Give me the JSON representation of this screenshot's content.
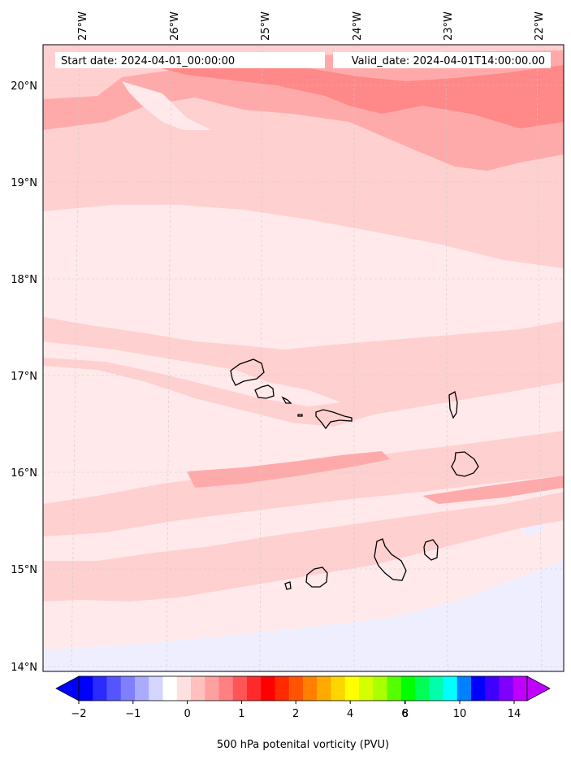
{
  "header": {
    "start_label": "Start date: 2024-04-01_00:00:00",
    "valid_label": "Valid_date: 2024-04-01T14:00:00.00"
  },
  "map": {
    "lon_labels": [
      "27°W",
      "26°W",
      "25°W",
      "24°W",
      "23°W",
      "22°W"
    ],
    "lat_labels": [
      "20°N",
      "19°N",
      "18°N",
      "17°N",
      "16°N",
      "15°N",
      "14°N"
    ],
    "fill_colors": {
      "very_light_pink": "#ffe9ea",
      "light_pink": "#ffd0d0",
      "pink": "#ffaaaa",
      "salmon": "#ff8888",
      "lavender": "#eeeeff",
      "coastline": "#000000",
      "grid": "#cccccc"
    }
  },
  "colorbar": {
    "label": "500 hPa potenital vorticity (PVU)",
    "ticks": [
      "−2",
      "−1",
      "0",
      "1",
      "2",
      "4",
      "6",
      "8",
      "10",
      "14"
    ],
    "colors": [
      "#0000ff",
      "#2b2bff",
      "#5555ff",
      "#8080ff",
      "#aaaaff",
      "#d5d5ff",
      "#ffffff",
      "#ffe0e0",
      "#ffc0c0",
      "#ffa0a0",
      "#ff8080",
      "#ff5555",
      "#ff2b2b",
      "#ff0000",
      "#ff2a00",
      "#ff5500",
      "#ff8000",
      "#ffaa00",
      "#ffd500",
      "#ffff00",
      "#d5ff00",
      "#aaff00",
      "#55ff00",
      "#00ff00",
      "#00ff55",
      "#00ffaa",
      "#00ffff",
      "#0080ff",
      "#0000ff",
      "#4000ff",
      "#8000ff",
      "#c000ff"
    ],
    "under_color": "#0000ff",
    "over_color": "#c000ff"
  }
}
